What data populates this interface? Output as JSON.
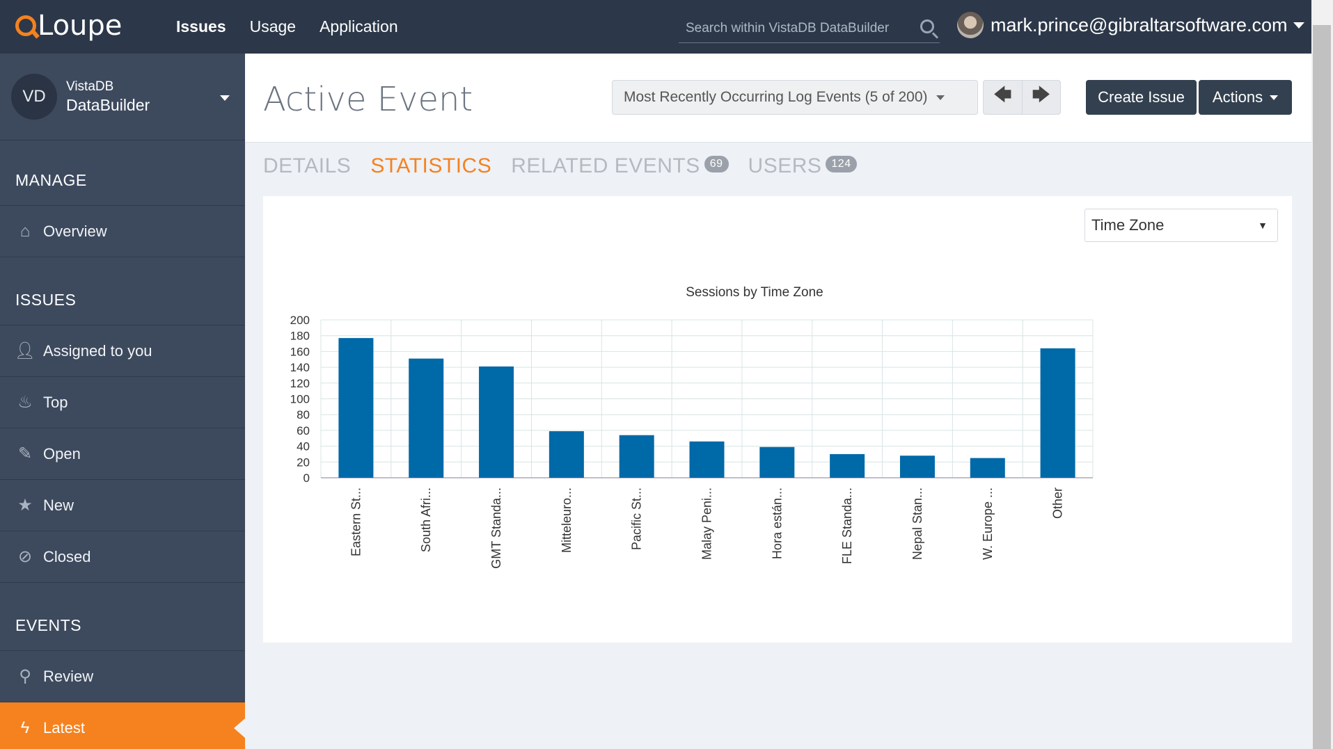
{
  "topbar": {
    "logo": "Loupe",
    "nav": [
      "Issues",
      "Usage",
      "Application"
    ],
    "search_placeholder": "Search within VistaDB DataBuilder",
    "user_email": "mark.prince@gibraltarsoftware.com"
  },
  "sidebar": {
    "app_initials": "VD",
    "app_line1": "VistaDB",
    "app_line2": "DataBuilder",
    "sections": {
      "manage": "MANAGE",
      "issues": "ISSUES",
      "events": "EVENTS"
    },
    "items": {
      "overview": "Overview",
      "assigned": "Assigned to you",
      "top": "Top",
      "open": "Open",
      "new": "New",
      "closed": "Closed",
      "review": "Review",
      "latest": "Latest"
    }
  },
  "header": {
    "title": "Active Event",
    "events_select": "Most Recently Occurring Log Events (5 of 200)",
    "prev": "🡄",
    "next": "🡆",
    "create_issue": "Create Issue",
    "actions": "Actions"
  },
  "tabs": {
    "details": "DETAILS",
    "statistics": "STATISTICS",
    "related": "RELATED EVENTS",
    "related_count": "69",
    "users": "USERS",
    "users_count": "124"
  },
  "panel": {
    "group_select": "Time Zone"
  },
  "chart_data": {
    "type": "bar",
    "title": "Sessions by Time Zone",
    "categories": [
      "Eastern St...",
      "South Afri...",
      "GMT Standa...",
      "Mitteleuro...",
      "Pacific St...",
      "Malay Peni...",
      "Hora están...",
      "FLE Standa...",
      "Nepal Stan...",
      "W. Europe ...",
      "Other"
    ],
    "values": [
      177,
      151,
      141,
      59,
      54,
      46,
      39,
      30,
      28,
      25,
      164
    ],
    "yticks": [
      "0",
      "20",
      "40",
      "60",
      "80",
      "100",
      "120",
      "140",
      "160",
      "180",
      "200"
    ],
    "ylim": [
      0,
      200
    ],
    "grid": true,
    "color": "#0069a8"
  }
}
